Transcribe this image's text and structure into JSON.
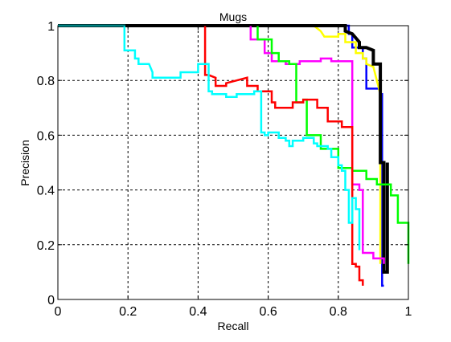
{
  "chart_data": {
    "type": "line",
    "title": "Mugs",
    "xlabel": "Recall",
    "ylabel": "Precision",
    "xlim": [
      0,
      1
    ],
    "ylim": [
      0,
      1
    ],
    "xticks": [
      "0",
      "0.2",
      "0.4",
      "0.6",
      "0.8",
      "1"
    ],
    "yticks": [
      "0",
      "0.2",
      "0.4",
      "0.6",
      "0.8",
      "1"
    ],
    "grid": true,
    "grid_style": "dashed",
    "legend": "none",
    "series": [
      {
        "color": "#0000ff",
        "x": [
          0.035,
          0.83,
          0.83,
          0.84,
          0.84,
          0.87,
          0.87,
          0.87,
          0.88,
          0.88,
          0.92,
          0.92,
          0.925,
          0.925,
          0.93
        ],
        "y": [
          1.0,
          1.0,
          0.97,
          0.97,
          0.92,
          0.92,
          0.88,
          0.88,
          0.88,
          0.77,
          0.77,
          0.75,
          0.75,
          0.05,
          0.05
        ]
      },
      {
        "color": "#ffff00",
        "x": [
          0.73,
          0.75,
          0.76,
          0.8,
          0.8,
          0.82,
          0.82,
          0.85,
          0.85,
          0.87,
          0.87,
          0.88,
          0.88,
          0.9,
          0.92,
          0.92,
          0.92
        ],
        "y": [
          1.0,
          0.98,
          0.96,
          0.96,
          0.97,
          0.97,
          0.94,
          0.94,
          0.9,
          0.9,
          0.88,
          0.88,
          0.86,
          0.85,
          0.75,
          0.5,
          0.13
        ]
      },
      {
        "color": "#000000",
        "x": [
          0.0,
          0.81,
          0.82,
          0.82,
          0.84,
          0.86,
          0.86,
          0.88,
          0.9,
          0.9,
          0.92,
          0.92,
          0.93,
          0.93,
          0.94,
          0.94
        ],
        "y": [
          1.0,
          1.0,
          1.0,
          0.98,
          0.97,
          0.94,
          0.92,
          0.92,
          0.91,
          0.86,
          0.86,
          0.5,
          0.5,
          0.1,
          0.1,
          0.5
        ]
      },
      {
        "color": "#ff00ff",
        "x": [
          0.55,
          0.55,
          0.59,
          0.59,
          0.61,
          0.61,
          0.65,
          0.65,
          0.69,
          0.69,
          0.75,
          0.75,
          0.78,
          0.78,
          0.84,
          0.84,
          0.86,
          0.86,
          0.87,
          0.87,
          0.9,
          0.9,
          0.93,
          0.93
        ],
        "y": [
          1.0,
          0.95,
          0.95,
          0.9,
          0.9,
          0.87,
          0.87,
          0.86,
          0.86,
          0.87,
          0.87,
          0.88,
          0.88,
          0.87,
          0.87,
          0.42,
          0.42,
          0.4,
          0.4,
          0.17,
          0.17,
          0.15,
          0.15,
          0.13
        ]
      },
      {
        "color": "#00ff00",
        "x": [
          0.57,
          0.57,
          0.61,
          0.61,
          0.63,
          0.63,
          0.66,
          0.66,
          0.68,
          0.68,
          0.7,
          0.7,
          0.71,
          0.71,
          0.75,
          0.75,
          0.8,
          0.8,
          0.84,
          0.84,
          0.88,
          0.88,
          0.91,
          0.91,
          0.95,
          0.95,
          0.97,
          0.97,
          1.0,
          1.0
        ],
        "y": [
          1.0,
          0.95,
          0.95,
          0.9,
          0.9,
          0.87,
          0.87,
          0.86,
          0.86,
          0.72,
          0.72,
          0.73,
          0.73,
          0.6,
          0.6,
          0.55,
          0.55,
          0.48,
          0.48,
          0.47,
          0.47,
          0.44,
          0.44,
          0.42,
          0.42,
          0.38,
          0.38,
          0.28,
          0.28,
          0.13
        ]
      },
      {
        "color": "#ff0000",
        "x": [
          0.42,
          0.42,
          0.43,
          0.45,
          0.45,
          0.48,
          0.48,
          0.51,
          0.54,
          0.54,
          0.57,
          0.57,
          0.61,
          0.61,
          0.62,
          0.62,
          0.67,
          0.67,
          0.7,
          0.7,
          0.74,
          0.74,
          0.77,
          0.77,
          0.81,
          0.81,
          0.84,
          0.84,
          0.85,
          0.85,
          0.86,
          0.86,
          0.87,
          0.87
        ],
        "y": [
          1.0,
          0.82,
          0.82,
          0.81,
          0.78,
          0.78,
          0.79,
          0.8,
          0.81,
          0.78,
          0.78,
          0.76,
          0.76,
          0.72,
          0.72,
          0.7,
          0.7,
          0.72,
          0.72,
          0.73,
          0.73,
          0.7,
          0.7,
          0.65,
          0.65,
          0.63,
          0.63,
          0.13,
          0.13,
          0.12,
          0.12,
          0.07,
          0.07,
          0.05
        ]
      },
      {
        "color": "#00ffff",
        "x": [
          0.0,
          0.19,
          0.19,
          0.22,
          0.22,
          0.23,
          0.23,
          0.26,
          0.27,
          0.27,
          0.35,
          0.35,
          0.4,
          0.4,
          0.43,
          0.43,
          0.44,
          0.44,
          0.48,
          0.48,
          0.51,
          0.51,
          0.56,
          0.56,
          0.58,
          0.58,
          0.59,
          0.59,
          0.6,
          0.6,
          0.63,
          0.63,
          0.65,
          0.65,
          0.66,
          0.66,
          0.67,
          0.67,
          0.7,
          0.7,
          0.73,
          0.73,
          0.74,
          0.74,
          0.77,
          0.77,
          0.78,
          0.78,
          0.8,
          0.8,
          0.81,
          0.81,
          0.82,
          0.82,
          0.83,
          0.83,
          0.84,
          0.84,
          0.85,
          0.85,
          0.86,
          0.86
        ],
        "y": [
          1.0,
          1.0,
          0.91,
          0.91,
          0.88,
          0.88,
          0.86,
          0.86,
          0.83,
          0.81,
          0.81,
          0.83,
          0.83,
          0.86,
          0.86,
          0.76,
          0.76,
          0.75,
          0.75,
          0.74,
          0.74,
          0.75,
          0.75,
          0.76,
          0.76,
          0.61,
          0.61,
          0.6,
          0.6,
          0.61,
          0.61,
          0.59,
          0.59,
          0.58,
          0.58,
          0.56,
          0.56,
          0.58,
          0.58,
          0.59,
          0.59,
          0.57,
          0.57,
          0.56,
          0.56,
          0.55,
          0.55,
          0.52,
          0.52,
          0.49,
          0.49,
          0.47,
          0.47,
          0.4,
          0.4,
          0.28,
          0.28,
          0.37,
          0.37,
          0.33,
          0.33,
          0.18
        ]
      }
    ]
  }
}
